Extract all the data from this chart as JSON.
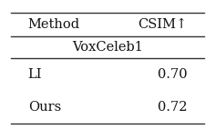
{
  "col_headers": [
    "Method",
    "CSIM↑"
  ],
  "group_header": "VoxCeleb1",
  "rows": [
    [
      "LI",
      "0.70"
    ],
    [
      "Ours",
      "0.72"
    ]
  ],
  "background_color": "#ffffff",
  "text_color": "#111111",
  "font_size": 10.5,
  "line_color": "#333333",
  "line_width": 1.0
}
